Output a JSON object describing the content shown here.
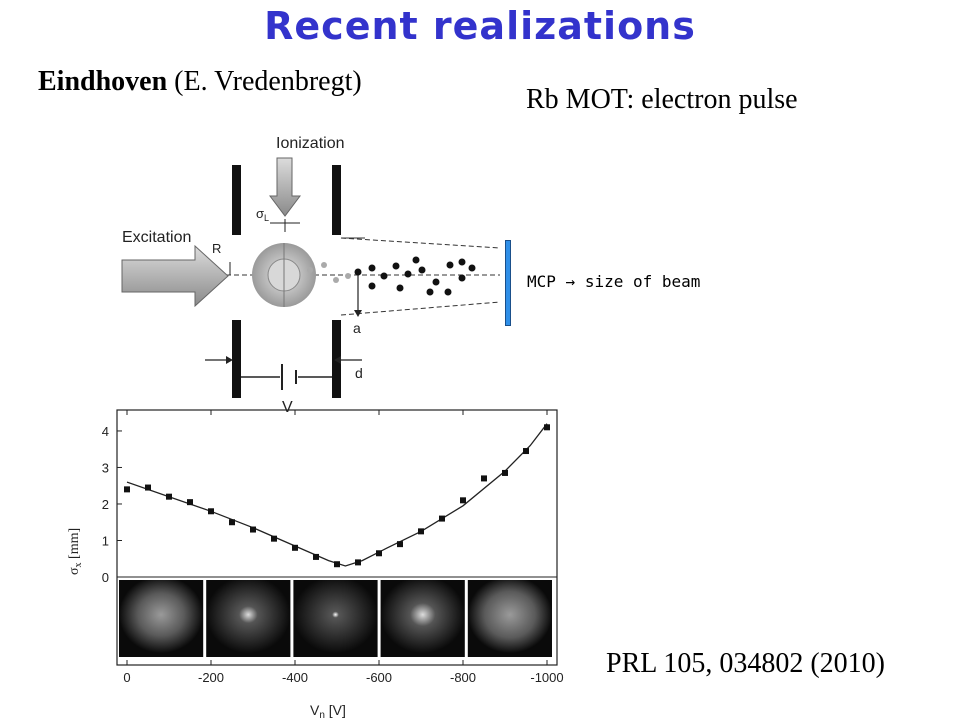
{
  "slide": {
    "title": "Recent realizations",
    "affiliation_bold": "Eindhoven",
    "affiliation_rest": " (E. Vredenbregt)",
    "subtitle": "Rb MOT: electron pulse",
    "mcp_label_prefix": "MCP",
    "mcp_arrow": "→",
    "mcp_label_suffix": "size of beam",
    "reference": "PRL 105, 034802 (2010)",
    "colors": {
      "title": "#3333cc",
      "mcp_bar": "#2f8fe8"
    }
  },
  "diagram": {
    "labels": {
      "ionization": "Ionization",
      "excitation": "Excitation",
      "sigma": "σ",
      "sigma_sub": "L",
      "r": "R",
      "a": "a",
      "d": "d",
      "v": "V"
    }
  },
  "chart_data": {
    "type": "scatter",
    "xlabel": "V",
    "xlabel_sub": "n",
    "xlabel_unit": " [V]",
    "ylabel": "σ",
    "ylabel_sub": "x",
    "ylabel_unit": " [mm]",
    "xlim": [
      0,
      -1000
    ],
    "ylim": [
      0,
      4.3
    ],
    "xticks": [
      0,
      -200,
      -400,
      -600,
      -800,
      -1000
    ],
    "yticks": [
      0,
      1,
      2,
      3,
      4
    ],
    "series": [
      {
        "x": [
          0,
          -50,
          -100,
          -150,
          -200,
          -250,
          -300,
          -350,
          -400,
          -450,
          -500,
          -550,
          -600,
          -650,
          -700,
          -750,
          -800,
          -850,
          -900,
          -950,
          -1000
        ],
        "y": [
          2.4,
          2.45,
          2.2,
          2.05,
          1.8,
          1.5,
          1.3,
          1.05,
          0.8,
          0.55,
          0.35,
          0.4,
          0.65,
          0.9,
          1.25,
          1.6,
          2.1,
          2.7,
          2.85,
          3.45,
          4.1
        ]
      }
    ],
    "fit": {
      "x": [
        0,
        -100,
        -200,
        -300,
        -400,
        -480,
        -520,
        -560,
        -620,
        -700,
        -800,
        -900,
        -960,
        -1000
      ],
      "y": [
        2.6,
        2.2,
        1.8,
        1.35,
        0.85,
        0.45,
        0.3,
        0.45,
        0.8,
        1.25,
        1.95,
        2.9,
        3.6,
        4.2
      ]
    },
    "beam_images": 5
  }
}
